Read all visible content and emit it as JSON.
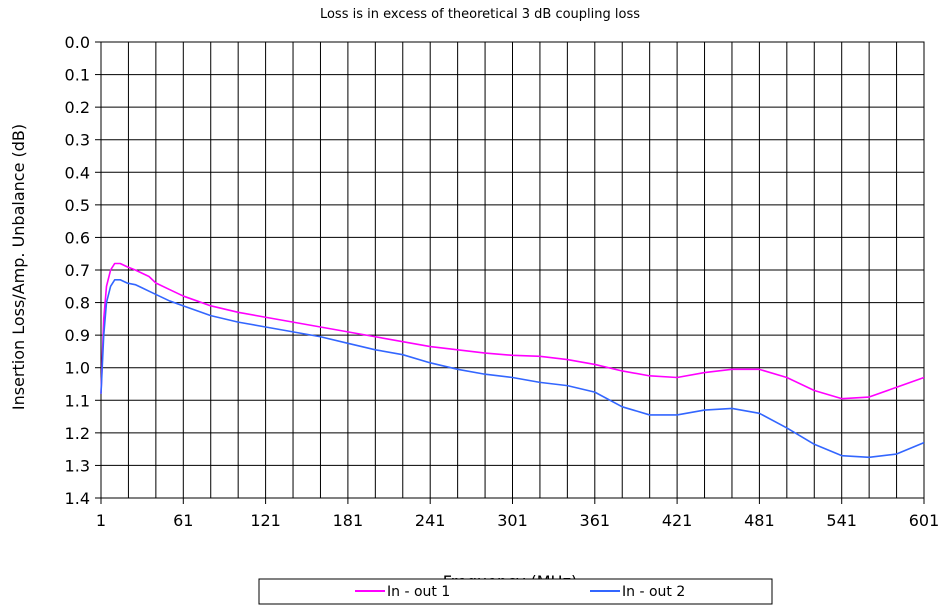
{
  "chart_data": {
    "type": "line",
    "title": "Loss is in excess of theoretical 3 dB coupling loss",
    "xlabel": "Frequency (MHz)",
    "ylabel": "Insertion Loss/Amp. Unbalance (dB)",
    "xlim": [
      1,
      601
    ],
    "ylim": [
      0.0,
      1.4
    ],
    "y_inverted": true,
    "grid": true,
    "legend_position": "bottom",
    "x_ticks": [
      1,
      61,
      121,
      181,
      241,
      301,
      361,
      421,
      481,
      541,
      601
    ],
    "x_tick_labels": [
      "1",
      "61",
      "121",
      "181",
      "241",
      "301",
      "361",
      "421",
      "481",
      "541",
      "601"
    ],
    "y_ticks": [
      0.0,
      0.1,
      0.2,
      0.3,
      0.4,
      0.5,
      0.6,
      0.7,
      0.8,
      0.9,
      1.0,
      1.1,
      1.2,
      1.3,
      1.4
    ],
    "y_tick_labels": [
      "0.0",
      "0.1",
      "0.2",
      "0.3",
      "0.4",
      "0.5",
      "0.6",
      "0.7",
      "0.8",
      "0.9",
      "1.0",
      "1.1",
      "1.2",
      "1.3",
      "1.4"
    ],
    "series": [
      {
        "name": "In - out 1",
        "color": "#ff00ff",
        "x": [
          1,
          3,
          5,
          8,
          11,
          15,
          20,
          26,
          31,
          36,
          41,
          51,
          61,
          71,
          81,
          91,
          101,
          121,
          141,
          161,
          181,
          201,
          221,
          241,
          261,
          281,
          301,
          321,
          341,
          361,
          381,
          401,
          421,
          441,
          461,
          481,
          501,
          521,
          541,
          561,
          581,
          601
        ],
        "y": [
          1.08,
          0.85,
          0.75,
          0.7,
          0.68,
          0.68,
          0.69,
          0.7,
          0.71,
          0.72,
          0.74,
          0.76,
          0.78,
          0.795,
          0.81,
          0.82,
          0.83,
          0.845,
          0.86,
          0.875,
          0.89,
          0.905,
          0.92,
          0.935,
          0.945,
          0.955,
          0.962,
          0.965,
          0.975,
          0.99,
          1.01,
          1.025,
          1.03,
          1.015,
          1.005,
          1.005,
          1.03,
          1.07,
          1.095,
          1.09,
          1.06,
          1.03
        ]
      },
      {
        "name": "In - out 2",
        "color": "#3366ff",
        "x": [
          1,
          3,
          5,
          8,
          11,
          15,
          20,
          26,
          31,
          36,
          41,
          51,
          61,
          71,
          81,
          91,
          101,
          121,
          141,
          161,
          181,
          201,
          221,
          241,
          261,
          281,
          301,
          321,
          341,
          361,
          381,
          401,
          421,
          441,
          461,
          481,
          501,
          521,
          541,
          561,
          581,
          601
        ],
        "y": [
          1.08,
          0.9,
          0.8,
          0.75,
          0.73,
          0.73,
          0.74,
          0.745,
          0.755,
          0.765,
          0.775,
          0.795,
          0.81,
          0.825,
          0.84,
          0.85,
          0.86,
          0.875,
          0.89,
          0.905,
          0.925,
          0.945,
          0.96,
          0.985,
          1.005,
          1.02,
          1.03,
          1.045,
          1.055,
          1.075,
          1.12,
          1.145,
          1.145,
          1.13,
          1.125,
          1.14,
          1.185,
          1.235,
          1.27,
          1.275,
          1.265,
          1.23
        ]
      }
    ]
  }
}
